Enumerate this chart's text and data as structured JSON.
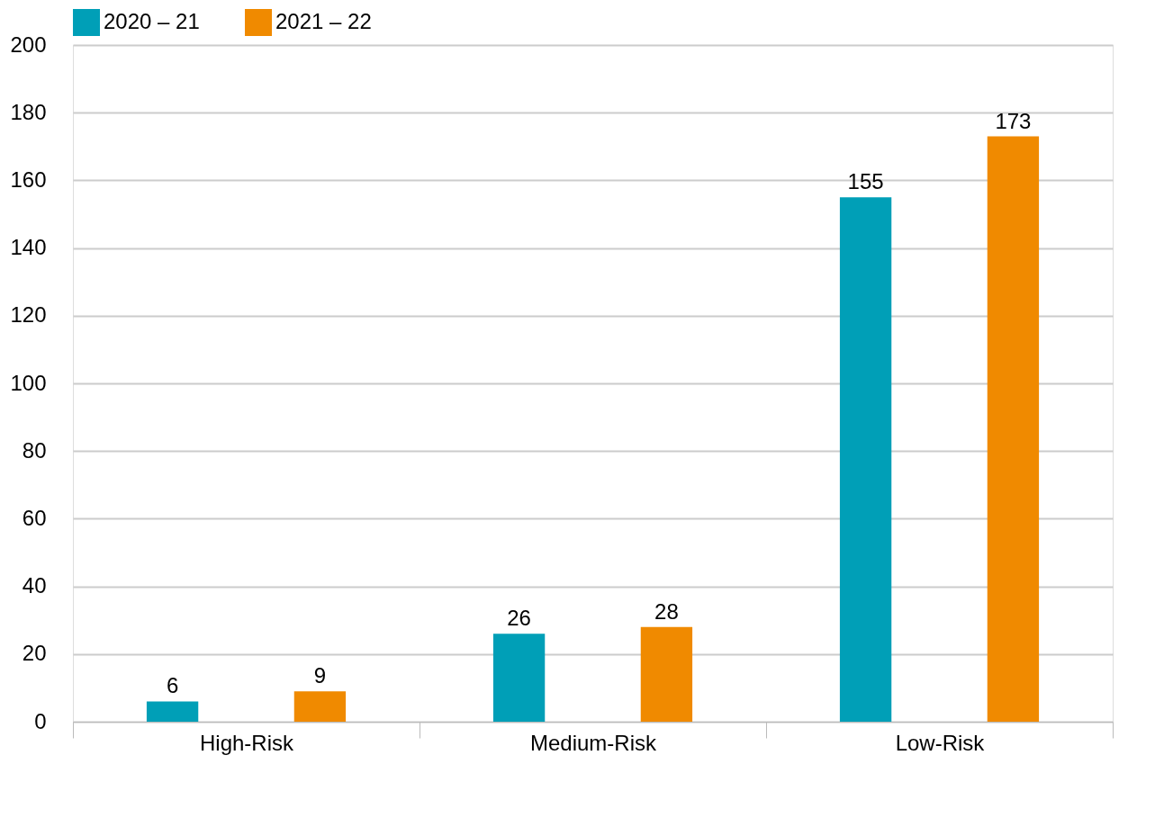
{
  "chart_data": {
    "type": "bar",
    "categories": [
      "High-Risk",
      "Medium-Risk",
      "Low-Risk"
    ],
    "series": [
      {
        "name": "2020 – 21",
        "color": "#009fb7",
        "values": [
          6,
          26,
          155
        ]
      },
      {
        "name": "2021 – 22",
        "color": "#f08a00",
        "values": [
          9,
          28,
          173
        ]
      }
    ],
    "ylim": [
      0,
      200
    ],
    "yticks": [
      0,
      20,
      40,
      60,
      80,
      100,
      120,
      140,
      160,
      180,
      200
    ],
    "grid": "y",
    "legend": "top left",
    "data_labels": true
  }
}
